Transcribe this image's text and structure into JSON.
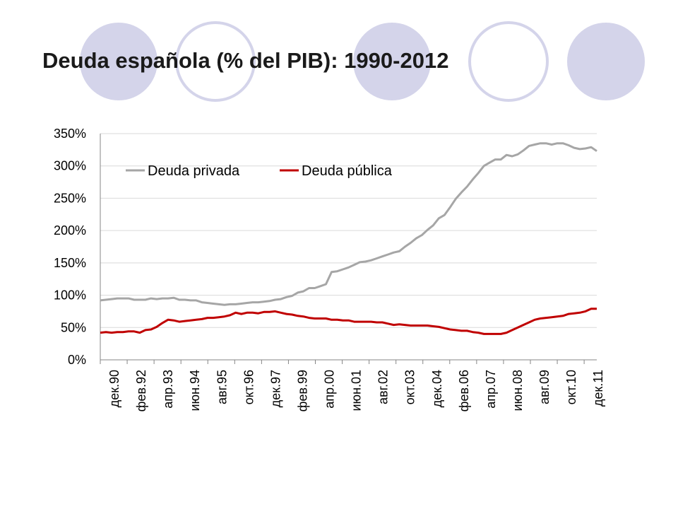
{
  "slide": {
    "title": "Deuda española (% del PIB): 1990-2012"
  },
  "theme": {
    "circle_fill": "#d4d4ea",
    "circle_stroke": "#d4d4ea",
    "circle_hollow_fill": "#ffffff",
    "grid_color": "#d9d9d9",
    "axis_color": "#868686"
  },
  "chart_data": {
    "type": "line",
    "title": "",
    "xlabel": "",
    "ylabel": "",
    "ylim": [
      0,
      350
    ],
    "y_ticks": [
      "0%",
      "50%",
      "100%",
      "150%",
      "200%",
      "250%",
      "300%",
      "350%"
    ],
    "y_tick_values": [
      0,
      50,
      100,
      150,
      200,
      250,
      300,
      350
    ],
    "x_tick_labels": [
      "дек.90",
      "фев.92",
      "апр.93",
      "июн.94",
      "авг.95",
      "окт.96",
      "дек.97",
      "фев.99",
      "апр.00",
      "июн.01",
      "авг.02",
      "окт.03",
      "дек.04",
      "фев.06",
      "апр.07",
      "июн.08",
      "авг.09",
      "окт.10",
      "дек.11"
    ],
    "grid": "horizontal",
    "legend_position": "top-left inside",
    "series": [
      {
        "name": "Deuda privada",
        "color": "#a6a6a6",
        "values": [
          92,
          93,
          94,
          95,
          95,
          95,
          93,
          93,
          93,
          95,
          94,
          95,
          95,
          96,
          93,
          93,
          92,
          92,
          89,
          88,
          87,
          86,
          85,
          86,
          86,
          87,
          88,
          89,
          89,
          90,
          91,
          93,
          94,
          97,
          99,
          104,
          106,
          111,
          111,
          114,
          117,
          136,
          137,
          140,
          143,
          147,
          151,
          152,
          154,
          157,
          160,
          163,
          166,
          168,
          175,
          181,
          188,
          193,
          201,
          208,
          219,
          224,
          236,
          249,
          259,
          268,
          279,
          289,
          300,
          305,
          310,
          310,
          317,
          315,
          318,
          324,
          331,
          333,
          335,
          335,
          333,
          335,
          335,
          332,
          328,
          326,
          327,
          329,
          323
        ]
      },
      {
        "name": "Deuda pública",
        "color": "#c00000",
        "values": [
          42,
          43,
          42,
          43,
          43,
          44,
          44,
          42,
          46,
          47,
          51,
          57,
          62,
          61,
          59,
          60,
          61,
          62,
          63,
          65,
          65,
          66,
          67,
          69,
          73,
          71,
          73,
          73,
          72,
          74,
          74,
          75,
          73,
          71,
          70,
          68,
          67,
          65,
          64,
          64,
          64,
          62,
          62,
          61,
          61,
          59,
          59,
          59,
          59,
          58,
          58,
          56,
          54,
          55,
          54,
          53,
          53,
          53,
          53,
          52,
          51,
          49,
          47,
          46,
          45,
          45,
          43,
          42,
          40,
          40,
          40,
          40,
          42,
          46,
          50,
          54,
          58,
          62,
          64,
          65,
          66,
          67,
          68,
          71,
          72,
          73,
          75,
          79,
          79
        ]
      }
    ]
  }
}
